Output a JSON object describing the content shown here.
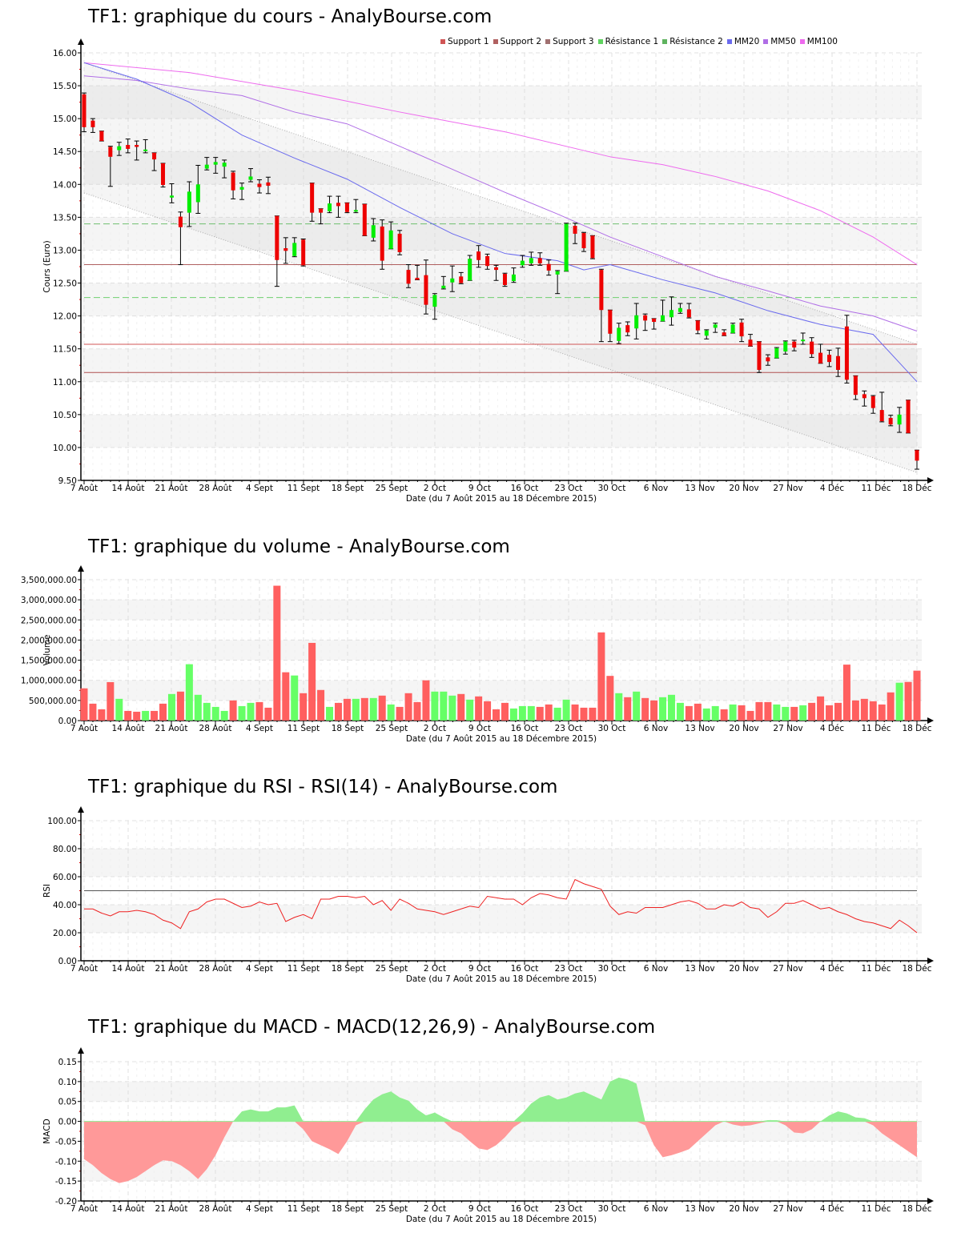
{
  "chart_data": [
    {
      "id": "price",
      "type": "candlestick",
      "title": "TF1: graphique du cours - AnalyBourse.com",
      "xlabel": "Date (du 7 Août 2015 au 18 Décembre 2015)",
      "ylabel": "Cours (Euro)",
      "ylim": [
        9.5,
        16.0
      ],
      "yticks": [
        "9.50",
        "10.00",
        "10.50",
        "11.00",
        "11.50",
        "12.00",
        "12.50",
        "13.00",
        "13.50",
        "14.00",
        "14.50",
        "15.00",
        "15.50",
        "16.00"
      ],
      "xticks": [
        "7 Août",
        "14 Août",
        "21 Août",
        "28 Août",
        "4 Sept",
        "11 Sept",
        "18 Sept",
        "25 Sept",
        "2 Oct",
        "9 Oct",
        "16 Oct",
        "23 Oct",
        "30 Oct",
        "6 Nov",
        "13 Nov",
        "20 Nov",
        "27 Nov",
        "4 Déc",
        "11 Déc",
        "18 Déc"
      ],
      "grid": true,
      "legend": [
        {
          "label": "Support 1",
          "color": "#d05555"
        },
        {
          "label": "Support 2",
          "color": "#b06060"
        },
        {
          "label": "Support 3",
          "color": "#a07070"
        },
        {
          "label": "Résistance 1",
          "color": "#5fd35f"
        },
        {
          "label": "Résistance 2",
          "color": "#5fb35f"
        },
        {
          "label": "MM20",
          "color": "#6a6aee"
        },
        {
          "label": "MM50",
          "color": "#b06ee6"
        },
        {
          "label": "MM100",
          "color": "#ee6aee"
        }
      ],
      "levels": {
        "support_1": 11.57,
        "support_2": 11.14,
        "support_3": 12.78,
        "resistance_1": 12.28,
        "resistance_2": 13.4
      },
      "trend_channel": {
        "upper": [
          15.85,
          11.57
        ],
        "lower": [
          13.87,
          9.62
        ]
      },
      "candles": [
        [
          15.37,
          15.39,
          14.8,
          14.87
        ],
        [
          14.97,
          15.0,
          14.79,
          14.87
        ],
        [
          14.81,
          14.81,
          14.66,
          14.66
        ],
        [
          14.57,
          14.58,
          13.97,
          14.42
        ],
        [
          14.52,
          14.64,
          14.44,
          14.58
        ],
        [
          14.6,
          14.69,
          14.48,
          14.54
        ],
        [
          14.6,
          14.66,
          14.37,
          14.57
        ],
        [
          14.51,
          14.68,
          14.48,
          14.53
        ],
        [
          14.48,
          14.48,
          14.21,
          14.38
        ],
        [
          14.32,
          14.32,
          13.96,
          13.99
        ],
        [
          13.8,
          14.01,
          13.72,
          13.83
        ],
        [
          13.51,
          13.58,
          12.78,
          13.35
        ],
        [
          13.57,
          14.04,
          13.36,
          13.89
        ],
        [
          13.73,
          14.29,
          13.56,
          14.0
        ],
        [
          14.24,
          14.41,
          14.22,
          14.3
        ],
        [
          14.3,
          14.41,
          14.17,
          14.34
        ],
        [
          14.27,
          14.37,
          14.1,
          14.33
        ],
        [
          14.18,
          14.2,
          13.78,
          13.91
        ],
        [
          13.92,
          14.02,
          13.77,
          13.96
        ],
        [
          14.07,
          14.24,
          14.04,
          14.12
        ],
        [
          14.01,
          14.07,
          13.87,
          13.96
        ],
        [
          14.03,
          14.11,
          13.86,
          13.98
        ],
        [
          13.52,
          13.52,
          12.45,
          12.85
        ],
        [
          13.03,
          13.19,
          12.8,
          12.99
        ],
        [
          12.91,
          13.19,
          12.9,
          13.11
        ],
        [
          13.16,
          13.17,
          12.76,
          12.77
        ],
        [
          14.02,
          14.02,
          13.44,
          13.57
        ],
        [
          13.63,
          13.63,
          13.4,
          13.57
        ],
        [
          13.59,
          13.82,
          13.57,
          13.71
        ],
        [
          13.72,
          13.82,
          13.5,
          13.67
        ],
        [
          13.72,
          13.72,
          13.57,
          13.58
        ],
        [
          13.59,
          13.77,
          13.57,
          13.61
        ],
        [
          13.7,
          13.7,
          13.22,
          13.22
        ],
        [
          13.19,
          13.48,
          13.14,
          13.38
        ],
        [
          13.36,
          13.46,
          12.71,
          12.84
        ],
        [
          13.02,
          13.43,
          13.02,
          13.3
        ],
        [
          13.25,
          13.3,
          12.93,
          12.97
        ],
        [
          12.7,
          12.78,
          12.43,
          12.49
        ],
        [
          12.58,
          12.77,
          12.55,
          12.55
        ],
        [
          12.62,
          12.85,
          12.03,
          12.17
        ],
        [
          12.14,
          12.34,
          11.95,
          12.32
        ],
        [
          12.42,
          12.6,
          12.41,
          12.46
        ],
        [
          12.51,
          12.76,
          12.37,
          12.57
        ],
        [
          12.6,
          12.66,
          12.49,
          12.5
        ],
        [
          12.54,
          12.92,
          12.54,
          12.87
        ],
        [
          12.98,
          13.07,
          12.74,
          12.85
        ],
        [
          12.91,
          12.94,
          12.71,
          12.76
        ],
        [
          12.74,
          12.77,
          12.54,
          12.7
        ],
        [
          12.64,
          12.65,
          12.45,
          12.47
        ],
        [
          12.53,
          12.73,
          12.51,
          12.63
        ],
        [
          12.77,
          12.92,
          12.74,
          12.84
        ],
        [
          12.8,
          12.97,
          12.77,
          12.88
        ],
        [
          12.88,
          12.96,
          12.77,
          12.8
        ],
        [
          12.79,
          12.85,
          12.62,
          12.69
        ],
        [
          12.63,
          12.69,
          12.34,
          12.68
        ],
        [
          12.68,
          13.41,
          12.68,
          13.4
        ],
        [
          13.37,
          13.41,
          13.1,
          13.25
        ],
        [
          13.26,
          13.27,
          12.98,
          13.03
        ],
        [
          13.22,
          13.22,
          12.87,
          12.88
        ],
        [
          12.7,
          12.71,
          11.61,
          12.09
        ],
        [
          12.09,
          12.09,
          11.61,
          11.73
        ],
        [
          11.62,
          11.89,
          11.58,
          11.82
        ],
        [
          11.86,
          11.91,
          11.7,
          11.75
        ],
        [
          11.81,
          12.19,
          11.65,
          12.01
        ],
        [
          12.01,
          12.03,
          11.78,
          11.93
        ],
        [
          11.96,
          11.96,
          11.8,
          11.91
        ],
        [
          11.92,
          12.24,
          11.92,
          12.01
        ],
        [
          11.98,
          12.29,
          11.86,
          12.09
        ],
        [
          12.06,
          12.19,
          12.04,
          12.12
        ],
        [
          12.1,
          12.19,
          11.97,
          11.98
        ],
        [
          11.93,
          11.93,
          11.73,
          11.78
        ],
        [
          11.7,
          11.79,
          11.65,
          11.78
        ],
        [
          11.82,
          11.89,
          11.75,
          11.87
        ],
        [
          11.75,
          11.79,
          11.7,
          11.7
        ],
        [
          11.74,
          11.89,
          11.74,
          11.87
        ],
        [
          11.9,
          11.95,
          11.61,
          11.69
        ],
        [
          11.64,
          11.72,
          11.54,
          11.54
        ],
        [
          11.61,
          11.61,
          11.14,
          11.18
        ],
        [
          11.37,
          11.41,
          11.25,
          11.31
        ],
        [
          11.36,
          11.52,
          11.36,
          11.51
        ],
        [
          11.46,
          11.62,
          11.42,
          11.61
        ],
        [
          11.61,
          11.63,
          11.47,
          11.52
        ],
        [
          11.62,
          11.74,
          11.57,
          11.64
        ],
        [
          11.61,
          11.67,
          11.37,
          11.42
        ],
        [
          11.44,
          11.57,
          11.28,
          11.28
        ],
        [
          11.41,
          11.48,
          11.23,
          11.3
        ],
        [
          11.39,
          11.51,
          11.08,
          11.18
        ],
        [
          11.84,
          12.01,
          10.98,
          11.03
        ],
        [
          11.09,
          11.09,
          10.73,
          10.8
        ],
        [
          10.81,
          10.86,
          10.63,
          10.75
        ],
        [
          10.78,
          10.79,
          10.52,
          10.6
        ],
        [
          10.57,
          10.84,
          10.39,
          10.4
        ],
        [
          10.45,
          10.49,
          10.33,
          10.35
        ],
        [
          10.35,
          10.61,
          10.23,
          10.5
        ],
        [
          10.72,
          10.72,
          10.22,
          10.22
        ],
        [
          9.96,
          9.96,
          9.67,
          9.8
        ]
      ],
      "mm20": [
        [
          0,
          15.85
        ],
        [
          6,
          15.6
        ],
        [
          12,
          15.25
        ],
        [
          18,
          14.75
        ],
        [
          24,
          14.4
        ],
        [
          30,
          14.08
        ],
        [
          36,
          13.65
        ],
        [
          42,
          13.25
        ],
        [
          48,
          12.95
        ],
        [
          54,
          12.84
        ],
        [
          57,
          12.7
        ],
        [
          60,
          12.78
        ],
        [
          66,
          12.55
        ],
        [
          72,
          12.35
        ],
        [
          78,
          12.08
        ],
        [
          84,
          11.87
        ],
        [
          90,
          11.72
        ],
        [
          95,
          11.0
        ]
      ],
      "mm50": [
        [
          0,
          15.65
        ],
        [
          6,
          15.58
        ],
        [
          12,
          15.45
        ],
        [
          18,
          15.35
        ],
        [
          24,
          15.1
        ],
        [
          30,
          14.92
        ],
        [
          36,
          14.58
        ],
        [
          42,
          14.23
        ],
        [
          48,
          13.88
        ],
        [
          54,
          13.55
        ],
        [
          60,
          13.2
        ],
        [
          66,
          12.9
        ],
        [
          72,
          12.6
        ],
        [
          78,
          12.38
        ],
        [
          84,
          12.15
        ],
        [
          90,
          12.0
        ],
        [
          95,
          11.77
        ]
      ],
      "mm100": [
        [
          0,
          15.85
        ],
        [
          12,
          15.7
        ],
        [
          24,
          15.43
        ],
        [
          36,
          15.1
        ],
        [
          48,
          14.8
        ],
        [
          60,
          14.42
        ],
        [
          66,
          14.3
        ],
        [
          72,
          14.12
        ],
        [
          78,
          13.9
        ],
        [
          84,
          13.6
        ],
        [
          90,
          13.2
        ],
        [
          95,
          12.78
        ]
      ]
    },
    {
      "id": "volume",
      "type": "bar",
      "title": "TF1: graphique du volume - AnalyBourse.com",
      "xlabel": "Date (du 7 Août 2015 au 18 Décembre 2015)",
      "ylabel": "Volume",
      "ylim": [
        0,
        3500000
      ],
      "yticks": [
        "0.00",
        "500,000.00",
        "1,000,000.00",
        "1,500,000.00",
        "2,000,000.00",
        "2,500,000.00",
        "3,000,000.00",
        "3,500,000.00"
      ],
      "grid": true,
      "values": [
        800000,
        420000,
        280000,
        955000,
        540000,
        240000,
        220000,
        240000,
        240000,
        420000,
        660000,
        720000,
        1400000,
        640000,
        440000,
        340000,
        240000,
        500000,
        360000,
        440000,
        460000,
        320000,
        3350000,
        1200000,
        1120000,
        680000,
        1930000,
        760000,
        340000,
        440000,
        540000,
        540000,
        560000,
        560000,
        620000,
        400000,
        340000,
        680000,
        460000,
        1000000,
        720000,
        720000,
        620000,
        660000,
        520000,
        600000,
        480000,
        280000,
        440000,
        300000,
        360000,
        360000,
        340000,
        400000,
        320000,
        520000,
        400000,
        320000,
        320000,
        2190000,
        1110000,
        680000,
        580000,
        720000,
        560000,
        500000,
        580000,
        640000,
        440000,
        360000,
        420000,
        300000,
        360000,
        280000,
        400000,
        380000,
        240000,
        460000,
        460000,
        400000,
        340000,
        340000,
        380000,
        440000,
        600000,
        380000,
        440000,
        1390000,
        500000,
        540000,
        480000,
        400000,
        700000,
        940000,
        960000,
        1240000
      ],
      "colors_up": "#66ff66",
      "colors_down": "#ff5f5f"
    },
    {
      "id": "rsi",
      "type": "line",
      "title": "TF1: graphique du RSI - RSI(14) - AnalyBourse.com",
      "xlabel": "Date (du 7 Août 2015 au 18 Décembre 2015)",
      "ylabel": "RSI",
      "ylim": [
        0,
        100
      ],
      "yticks": [
        "0.00",
        "20.00",
        "40.00",
        "60.00",
        "80.00",
        "100.00"
      ],
      "reference_line": 50,
      "grid": true,
      "values": [
        37,
        37,
        34,
        32,
        35,
        35,
        36,
        35,
        33,
        29,
        27,
        23,
        35,
        37,
        42,
        44,
        44,
        41,
        38,
        39,
        42,
        40,
        41,
        28,
        31,
        33,
        30,
        44,
        44,
        46,
        46,
        45,
        46,
        40,
        43,
        36,
        44,
        41,
        37,
        36,
        35,
        33,
        35,
        37,
        39,
        38,
        46,
        45,
        44,
        44,
        40,
        45,
        48,
        47,
        45,
        44,
        58,
        55,
        53,
        51,
        39,
        33,
        35,
        34,
        38,
        38,
        38,
        40,
        42,
        43,
        41,
        37,
        37,
        40,
        39,
        42,
        38,
        37,
        31,
        35,
        41,
        41,
        43,
        40,
        37,
        38,
        35,
        33,
        30,
        28,
        27,
        25,
        23,
        29,
        25,
        20
      ]
    },
    {
      "id": "macd",
      "type": "area",
      "title": "TF1: graphique du MACD - MACD(12,26,9) - AnalyBourse.com",
      "xlabel": "Date (du 7 Août 2015 au 18 Décembre 2015)",
      "ylabel": "MACD",
      "ylim": [
        -0.2,
        0.15
      ],
      "yticks": [
        "-0.20",
        "-0.15",
        "-0.10",
        "-0.05",
        "0.00",
        "0.05",
        "0.10",
        "0.15"
      ],
      "grid": true,
      "values": [
        -0.095,
        -0.11,
        -0.13,
        -0.145,
        -0.155,
        -0.15,
        -0.14,
        -0.125,
        -0.11,
        -0.098,
        -0.1,
        -0.11,
        -0.125,
        -0.145,
        -0.12,
        -0.085,
        -0.04,
        0.0,
        0.025,
        0.03,
        0.025,
        0.025,
        0.035,
        0.035,
        0.04,
        -0.02,
        -0.05,
        -0.06,
        -0.07,
        -0.082,
        -0.05,
        -0.01,
        0.03,
        0.055,
        0.068,
        0.075,
        0.06,
        0.052,
        0.03,
        0.015,
        0.022,
        0.01,
        -0.02,
        -0.03,
        -0.05,
        -0.068,
        -0.072,
        -0.06,
        -0.04,
        -0.015,
        0.02,
        0.045,
        0.06,
        0.066,
        0.055,
        0.06,
        0.07,
        0.075,
        0.065,
        0.055,
        0.1,
        0.11,
        0.105,
        0.095,
        -0.01,
        -0.06,
        -0.09,
        -0.085,
        -0.078,
        -0.07,
        -0.05,
        -0.03,
        -0.01,
        0.0,
        -0.008,
        -0.012,
        -0.01,
        -0.005,
        0.003,
        0.003,
        -0.01,
        -0.028,
        -0.03,
        -0.02,
        0.0,
        0.015,
        0.025,
        0.02,
        0.01,
        0.008,
        -0.01,
        -0.03,
        -0.045,
        -0.06,
        -0.075,
        -0.09
      ],
      "colors_up": "#90ee90",
      "colors_down": "#f99"
    }
  ]
}
